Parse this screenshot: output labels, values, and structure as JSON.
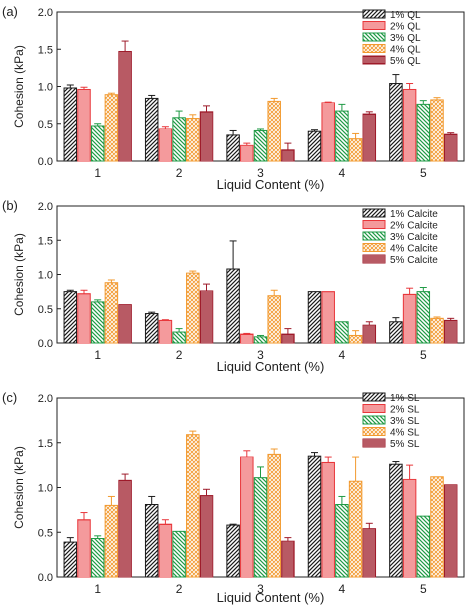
{
  "chart_data": [
    {
      "type": "bar",
      "panel_label": "(a)",
      "categories": [
        "1",
        "2",
        "3",
        "4",
        "5"
      ],
      "xlabel": "Liquid Content (%)",
      "ylabel": "Cohesion (kPa)",
      "ylim": [
        0,
        2.0
      ],
      "yticks": [
        "0.0",
        "0.5",
        "1.0",
        "1.5",
        "2.0"
      ],
      "legend_position": "top-right",
      "series": [
        {
          "name": "1% QL",
          "values": [
            0.98,
            0.84,
            0.35,
            0.4,
            1.04
          ],
          "errors": [
            0.04,
            0.04,
            0.06,
            0.02,
            0.12
          ]
        },
        {
          "name": "2% QL",
          "values": [
            0.96,
            0.43,
            0.21,
            0.78,
            0.96
          ],
          "errors": [
            0.03,
            0.03,
            0.03,
            0.01,
            0.08
          ]
        },
        {
          "name": "3% QL",
          "values": [
            0.47,
            0.58,
            0.41,
            0.67,
            0.76
          ],
          "errors": [
            0.03,
            0.09,
            0.02,
            0.09,
            0.05
          ]
        },
        {
          "name": "4% QL",
          "values": [
            0.89,
            0.57,
            0.8,
            0.3,
            0.82
          ],
          "errors": [
            0.02,
            0.05,
            0.04,
            0.07,
            0.03
          ]
        },
        {
          "name": "5% QL",
          "values": [
            1.47,
            0.66,
            0.15,
            0.63,
            0.36
          ],
          "errors": [
            0.14,
            0.08,
            0.09,
            0.03,
            0.02
          ]
        }
      ]
    },
    {
      "type": "bar",
      "panel_label": "(b)",
      "categories": [
        "1",
        "2",
        "3",
        "4",
        "5"
      ],
      "xlabel": "Liquid Content (%)",
      "ylabel": "Cohesion (kPa)",
      "ylim": [
        0,
        2.0
      ],
      "yticks": [
        "0.0",
        "0.5",
        "1.0",
        "1.5",
        "2.0"
      ],
      "legend_position": "top-right",
      "series": [
        {
          "name": "1% Calcite",
          "values": [
            0.75,
            0.43,
            1.08,
            0.75,
            0.31
          ],
          "errors": [
            0.02,
            0.02,
            0.41,
            0.0,
            0.06
          ]
        },
        {
          "name": "2% Calcite",
          "values": [
            0.72,
            0.33,
            0.13,
            0.75,
            0.71
          ],
          "errors": [
            0.05,
            0.01,
            0.01,
            0.0,
            0.09
          ]
        },
        {
          "name": "3% Calcite",
          "values": [
            0.6,
            0.16,
            0.09,
            0.31,
            0.75
          ],
          "errors": [
            0.03,
            0.05,
            0.02,
            0.0,
            0.06
          ]
        },
        {
          "name": "4% Calcite",
          "values": [
            0.88,
            1.02,
            0.69,
            0.11,
            0.36
          ],
          "errors": [
            0.04,
            0.03,
            0.08,
            0.07,
            0.02
          ]
        },
        {
          "name": "5% Calcite",
          "values": [
            0.56,
            0.76,
            0.13,
            0.26,
            0.33
          ],
          "errors": [
            0.0,
            0.1,
            0.08,
            0.05,
            0.03
          ]
        }
      ]
    },
    {
      "type": "bar",
      "panel_label": "(c)",
      "categories": [
        "1",
        "2",
        "3",
        "4",
        "5"
      ],
      "xlabel": "Liquid Content (%)",
      "ylabel": "Cohesion (kPa)",
      "ylim": [
        0,
        2.0
      ],
      "yticks": [
        "0.0",
        "0.5",
        "1.0",
        "1.5",
        "2.0"
      ],
      "legend_position": "top-right",
      "series": [
        {
          "name": "1% SL",
          "values": [
            0.39,
            0.81,
            0.58,
            1.35,
            1.26
          ],
          "errors": [
            0.05,
            0.09,
            0.01,
            0.04,
            0.03
          ]
        },
        {
          "name": "2% SL",
          "values": [
            0.64,
            0.59,
            1.34,
            1.28,
            1.09
          ],
          "errors": [
            0.08,
            0.05,
            0.07,
            0.06,
            0.16
          ]
        },
        {
          "name": "3% SL",
          "values": [
            0.43,
            0.51,
            1.11,
            0.81,
            0.68
          ],
          "errors": [
            0.03,
            0.0,
            0.12,
            0.09,
            0.0
          ]
        },
        {
          "name": "4% SL",
          "values": [
            0.8,
            1.59,
            1.37,
            1.07,
            1.12
          ],
          "errors": [
            0.1,
            0.04,
            0.06,
            0.27,
            0.0
          ]
        },
        {
          "name": "5% SL",
          "values": [
            1.08,
            0.91,
            0.4,
            0.54,
            1.03
          ],
          "errors": [
            0.07,
            0.07,
            0.04,
            0.06,
            0.0
          ]
        }
      ]
    }
  ],
  "series_styles": [
    {
      "color": "#1a1a1a",
      "pattern": "diag-left"
    },
    {
      "color": "#e8363a",
      "pattern": "horizontal"
    },
    {
      "color": "#1f9a45",
      "pattern": "diag-right"
    },
    {
      "color": "#f2992e",
      "pattern": "crosshatch"
    },
    {
      "color": "#9e1b2a",
      "pattern": "grid"
    }
  ]
}
